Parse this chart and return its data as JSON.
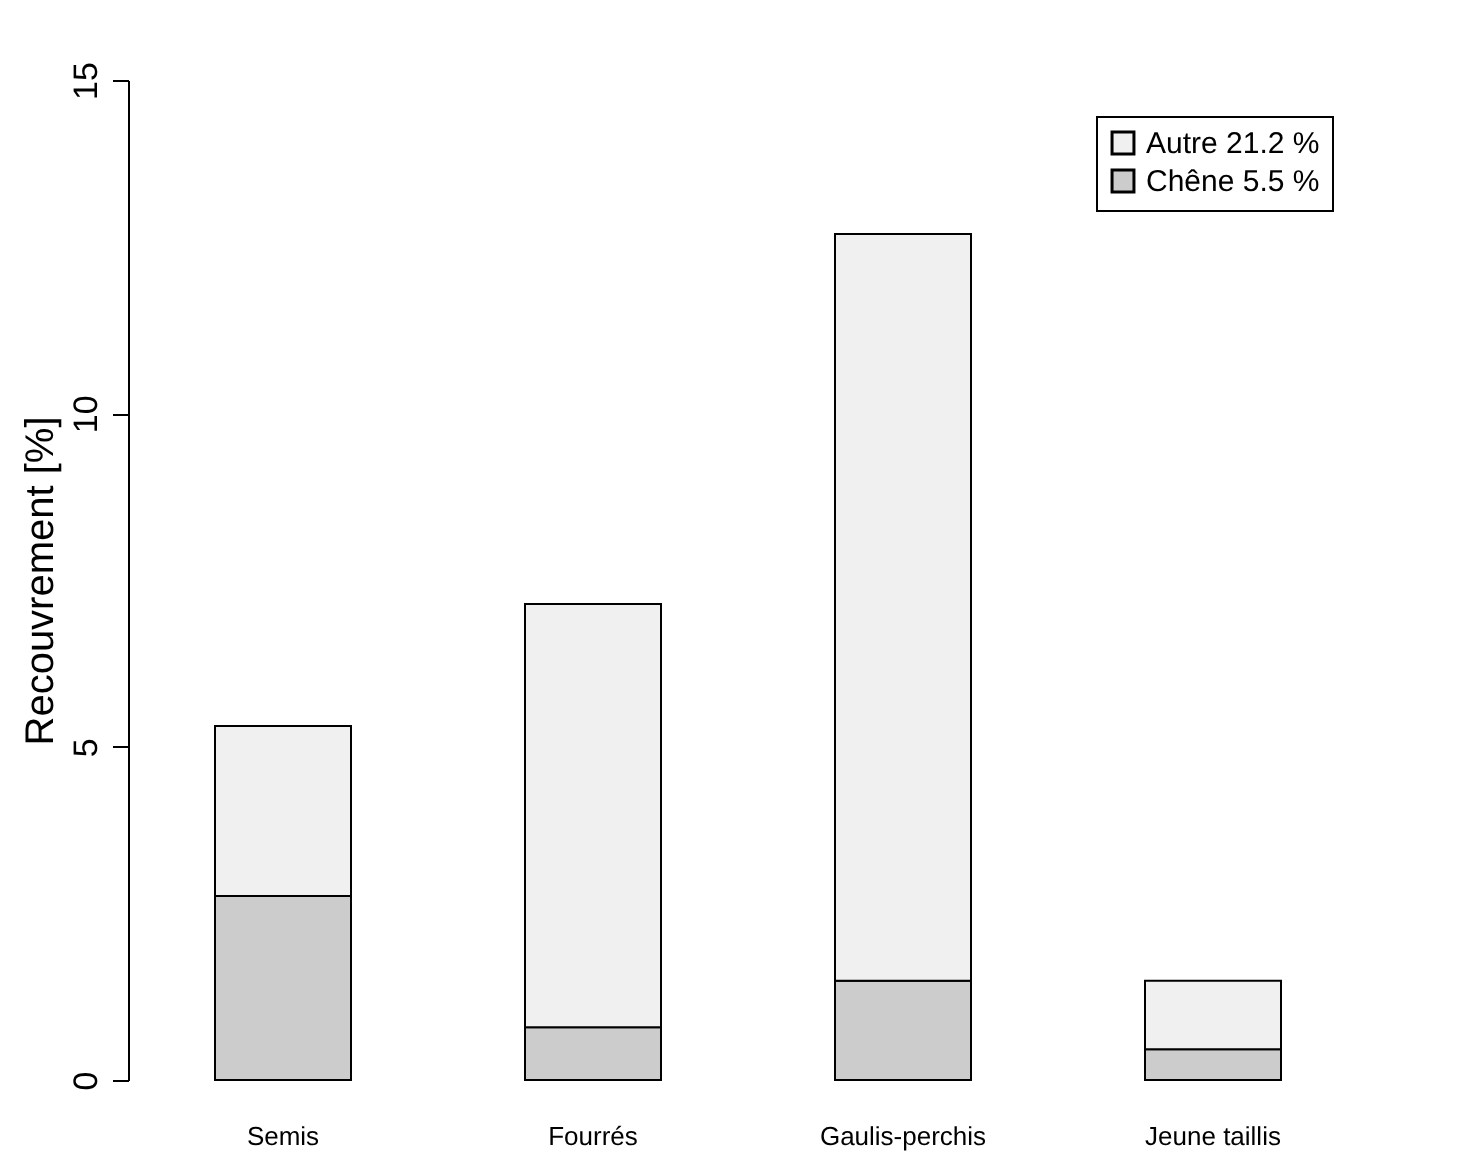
{
  "chart_data": {
    "type": "bar",
    "stacked": true,
    "ylabel": "Recouvrement [%]",
    "categories": [
      "Semis",
      "Fourrés",
      "Gaulis-perchis",
      "Jeune taillis"
    ],
    "series": [
      {
        "name": "Chêne 5.5 %",
        "color": "#cccccc",
        "values": [
          2.76,
          0.79,
          1.49,
          0.46
        ]
      },
      {
        "name": "Autre 21.2 %",
        "color": "#f0f0f0",
        "values": [
          2.55,
          6.35,
          11.2,
          1.03
        ]
      }
    ],
    "ylim": [
      0,
      15
    ],
    "yticks": [
      0,
      5,
      10,
      15
    ],
    "grid": false,
    "legend": "top right"
  }
}
